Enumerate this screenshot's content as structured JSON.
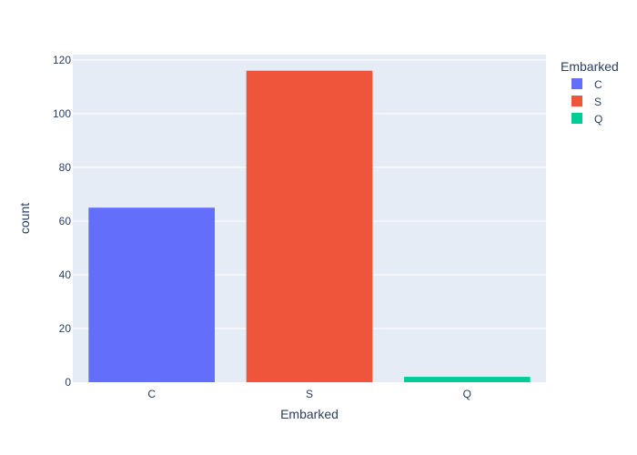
{
  "chart_data": {
    "type": "bar",
    "categories": [
      "C",
      "S",
      "Q"
    ],
    "values": [
      65,
      116,
      2
    ],
    "xlabel": "Embarked",
    "ylabel": "count",
    "ylim": [
      0,
      122
    ],
    "yticks": [
      0,
      20,
      40,
      60,
      80,
      100,
      120
    ],
    "grid": true,
    "legend": {
      "title": "Embarked",
      "placement": "top-right",
      "items": [
        {
          "label": "C",
          "color": "#636efa"
        },
        {
          "label": "S",
          "color": "#ef553b"
        },
        {
          "label": "Q",
          "color": "#00cc96"
        }
      ]
    }
  },
  "colors": {
    "plot_background": "#e5ecf6",
    "grid": "#ffffff",
    "text": "#2a3f5f"
  }
}
